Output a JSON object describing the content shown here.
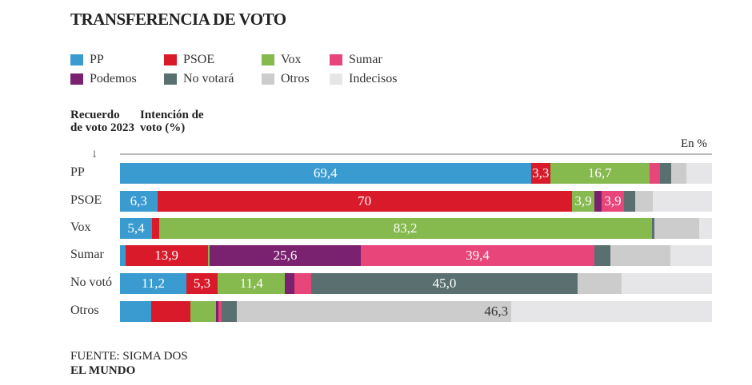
{
  "chart_data": {
    "type": "bar",
    "orientation": "horizontal-stacked",
    "title": "TRANSFERENCIA DE VOTO",
    "ylabel": "Recuerdo de voto 2023",
    "xlabel": "Intención de voto (%)",
    "unit_note": "En %",
    "xlim": [
      0,
      100
    ],
    "legend_placement": "top",
    "series": [
      {
        "name": "PP",
        "color": "#3a9bd0"
      },
      {
        "name": "PSOE",
        "color": "#d91a2a"
      },
      {
        "name": "Vox",
        "color": "#86b94e"
      },
      {
        "name": "Sumar",
        "color": "#e8457a"
      },
      {
        "name": "Podemos",
        "color": "#7a2170"
      },
      {
        "name": "No votará",
        "color": "#5a7070"
      },
      {
        "name": "Otros",
        "color": "#cccccc"
      },
      {
        "name": "Indecisos",
        "color": "#e6e6e8"
      }
    ],
    "stack_order": [
      "PP",
      "PSOE",
      "Vox",
      "Podemos",
      "Sumar",
      "No votará",
      "Otros",
      "Indecisos"
    ],
    "categories": [
      "PP",
      "PSOE",
      "Vox",
      "Sumar",
      "No votó",
      "Otros"
    ],
    "rows": [
      {
        "values": {
          "PP": 69.4,
          "PSOE": 3.3,
          "Vox": 16.7,
          "Podemos": 0,
          "Sumar": 1.8,
          "No votará": 1.9,
          "Otros": 2.6,
          "Indecisos": 4.3
        },
        "labels": {
          "PP": "69,4",
          "PSOE": "3,3",
          "Vox": "16,7"
        }
      },
      {
        "values": {
          "PP": 6.3,
          "PSOE": 70,
          "Vox": 3.9,
          "Podemos": 1.1,
          "Sumar": 3.9,
          "No votará": 1.8,
          "Otros": 3.0,
          "Indecisos": 10.0
        },
        "labels": {
          "PP": "6,3",
          "PSOE": "70",
          "Vox": "3,9",
          "Sumar": "3,9"
        }
      },
      {
        "values": {
          "PP": 5.4,
          "PSOE": 1.2,
          "Vox": 83.2,
          "Podemos": 0,
          "Sumar": 0,
          "No votará": 0.5,
          "Otros": 7.6,
          "Indecisos": 2.1
        },
        "labels": {
          "PP": "5,4",
          "Vox": "83,2"
        }
      },
      {
        "values": {
          "PP": 0.9,
          "PSOE": 13.9,
          "Vox": 0.3,
          "Podemos": 25.6,
          "Sumar": 39.4,
          "No votará": 2.8,
          "Otros": 10.1,
          "Indecisos": 7.0
        },
        "labels": {
          "PSOE": "13,9",
          "Podemos": "25,6",
          "Sumar": "39,4"
        }
      },
      {
        "values": {
          "PP": 11.2,
          "PSOE": 5.3,
          "Vox": 11.4,
          "Podemos": 1.6,
          "Sumar": 2.8,
          "No votará": 45.0,
          "Otros": 7.4,
          "Indecisos": 15.3
        },
        "labels": {
          "PP": "11,2",
          "PSOE": "5,3",
          "Vox": "11,4",
          "No votará": "45,0"
        }
      },
      {
        "values": {
          "PP": 5.3,
          "PSOE": 6.6,
          "Vox": 4.3,
          "Podemos": 0.4,
          "Sumar": 0.5,
          "No votará": 2.7,
          "Otros": 46.3,
          "Indecisos": 33.9
        },
        "labels": {
          "Otros": "46,3"
        }
      }
    ]
  },
  "header": {
    "recuerdo": "Recuerdo de voto 2023",
    "intencion": "Intención de voto (%)",
    "arrow": "↓",
    "en_pct": "En %"
  },
  "footer": {
    "source": "FUENTE: SIGMA DOS",
    "brand": "EL MUNDO"
  }
}
